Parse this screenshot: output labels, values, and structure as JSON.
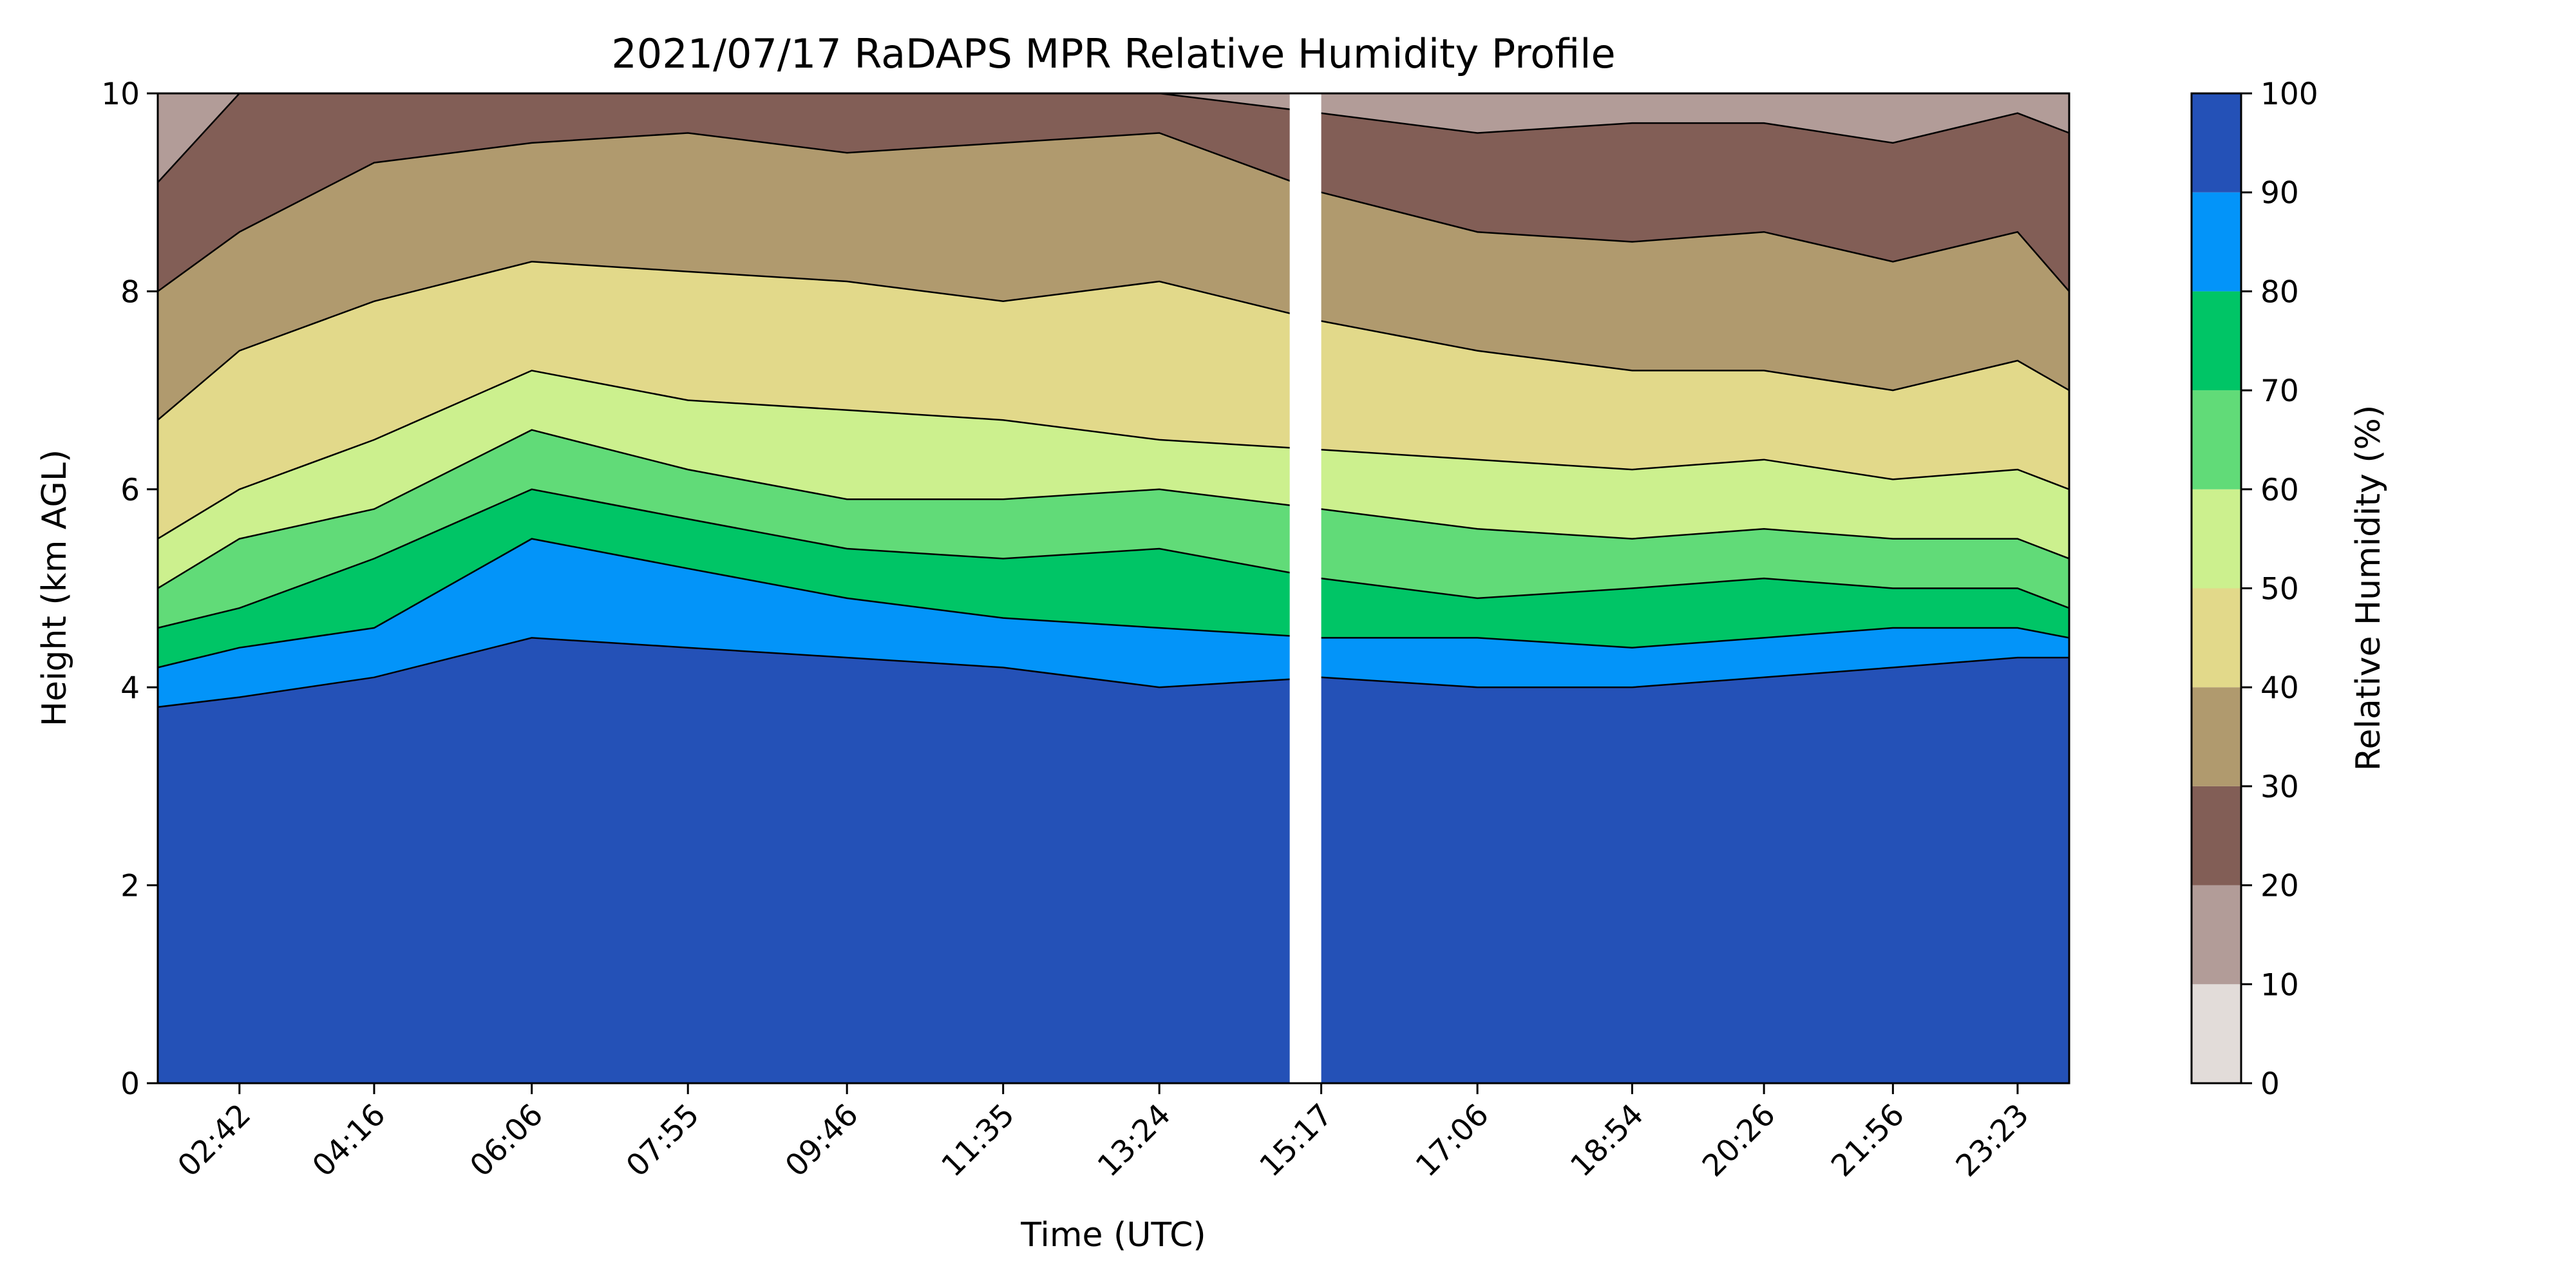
{
  "chart_data": {
    "type": "heatmap",
    "title": "2021/07/17 RaDAPS MPR Relative Humidity Profile",
    "xlabel": "Time (UTC)",
    "ylabel": "Height (km AGL)",
    "x_ticks": [
      "02:42",
      "04:16",
      "06:06",
      "07:55",
      "09:46",
      "11:35",
      "13:24",
      "15:17",
      "17:06",
      "18:54",
      "20:26",
      "21:56",
      "23:23"
    ],
    "y_ticks": [
      0,
      2,
      4,
      6,
      8,
      10
    ],
    "ylim": [
      0,
      10
    ],
    "colorbar": {
      "label": "Relative Humidity (%)",
      "ticks": [
        0,
        10,
        20,
        30,
        40,
        50,
        60,
        70,
        80,
        90,
        100
      ],
      "levels": [
        {
          "range": [
            0,
            10
          ],
          "color": "#e2dcd9"
        },
        {
          "range": [
            10,
            20
          ],
          "color": "#b29c98"
        },
        {
          "range": [
            20,
            30
          ],
          "color": "#825e56"
        },
        {
          "range": [
            30,
            40
          ],
          "color": "#b09a6e"
        },
        {
          "range": [
            40,
            50
          ],
          "color": "#e2d98a"
        },
        {
          "range": [
            50,
            60
          ],
          "color": "#ccf08e"
        },
        {
          "range": [
            60,
            70
          ],
          "color": "#61db78"
        },
        {
          "range": [
            70,
            80
          ],
          "color": "#00c566"
        },
        {
          "range": [
            80,
            90
          ],
          "color": "#0394f9"
        },
        {
          "range": [
            90,
            100
          ],
          "color": "#2451b7"
        }
      ]
    },
    "data_gap": {
      "from": "14:55",
      "to": "15:17"
    },
    "contour_boundaries_km": {
      "times": [
        "01:45",
        "02:42",
        "04:16",
        "06:06",
        "07:55",
        "09:46",
        "11:35",
        "13:24",
        "15:17",
        "17:06",
        "18:54",
        "20:26",
        "21:56",
        "23:23",
        "23:59"
      ],
      "rh_90": [
        3.8,
        3.9,
        4.1,
        4.5,
        4.4,
        4.3,
        4.2,
        4.0,
        4.1,
        4.0,
        4.0,
        4.1,
        4.2,
        4.3,
        4.3
      ],
      "rh_80": [
        4.2,
        4.4,
        4.6,
        5.5,
        5.2,
        4.9,
        4.7,
        4.6,
        4.5,
        4.5,
        4.4,
        4.5,
        4.6,
        4.6,
        4.5
      ],
      "rh_70": [
        4.6,
        4.8,
        5.3,
        6.0,
        5.7,
        5.4,
        5.3,
        5.4,
        5.1,
        4.9,
        5.0,
        5.1,
        5.0,
        5.0,
        4.8
      ],
      "rh_60": [
        5.0,
        5.5,
        5.8,
        6.6,
        6.2,
        5.9,
        5.9,
        6.0,
        5.8,
        5.6,
        5.5,
        5.6,
        5.5,
        5.5,
        5.3
      ],
      "rh_50": [
        5.5,
        6.0,
        6.5,
        7.2,
        6.9,
        6.8,
        6.7,
        6.5,
        6.4,
        6.3,
        6.2,
        6.3,
        6.1,
        6.2,
        6.0
      ],
      "rh_40": [
        6.7,
        7.4,
        7.9,
        8.3,
        8.2,
        8.1,
        7.9,
        8.1,
        7.7,
        7.4,
        7.2,
        7.2,
        7.0,
        7.3,
        7.0
      ],
      "rh_30": [
        8.0,
        8.6,
        9.3,
        9.5,
        9.6,
        9.4,
        9.5,
        9.6,
        9.0,
        8.6,
        8.5,
        8.6,
        8.3,
        8.6,
        8.0
      ],
      "rh_20": [
        9.1,
        10.0,
        10.0,
        10.0,
        10.0,
        10.0,
        10.0,
        10.0,
        9.8,
        9.6,
        9.7,
        9.7,
        9.5,
        9.8,
        9.6
      ]
    }
  }
}
